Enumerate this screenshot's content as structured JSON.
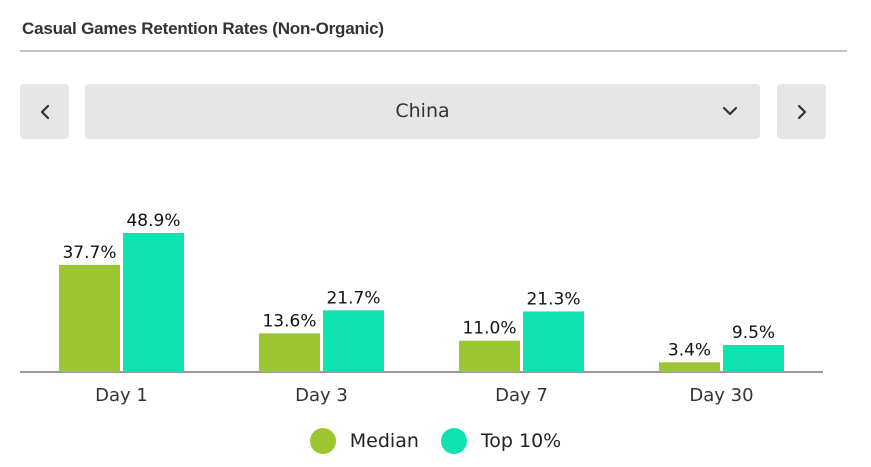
{
  "header": {
    "title": "Casual Games Retention Rates (Non-Organic)"
  },
  "selector": {
    "value": "China",
    "prev_icon": "chevron-left-icon",
    "next_icon": "chevron-right-icon",
    "dropdown_icon": "chevron-down-icon"
  },
  "colors": {
    "median": "#9cc532",
    "top10": "#0ee2b0",
    "axis": "#7a7a7a"
  },
  "chart_data": {
    "type": "bar",
    "categories": [
      "Day 1",
      "Day 3",
      "Day 7",
      "Day 30"
    ],
    "series": [
      {
        "name": "Median",
        "values": [
          37.7,
          13.6,
          11.0,
          3.4
        ],
        "labels": [
          "37.7%",
          "13.6%",
          "11.0%",
          "3.4%"
        ]
      },
      {
        "name": "Top 10%",
        "values": [
          48.9,
          21.7,
          21.3,
          9.5
        ],
        "labels": [
          "48.9%",
          "21.7%",
          "21.3%",
          "9.5%"
        ]
      }
    ],
    "ylim": [
      0,
      48.9
    ],
    "grid": false,
    "legend": "bottom"
  }
}
